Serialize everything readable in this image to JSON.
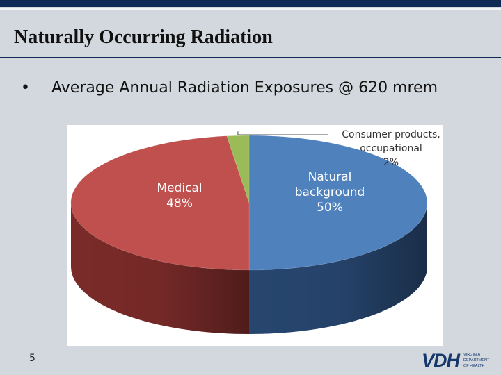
{
  "slide": {
    "title": "Naturally Occurring Radiation",
    "bullet": "Average Annual Radiation Exposures @ 620 mrem",
    "bullet_marker": "•",
    "page_number": "5"
  },
  "logo": {
    "main": "VDH",
    "sub_lines": [
      "VIRGINIA",
      "DEPARTMENT",
      "OF HEALTH"
    ]
  },
  "chart_data": {
    "type": "pie",
    "title": "",
    "slices": [
      {
        "label_lines": [
          "Natural",
          "background",
          "50%"
        ],
        "value": 50,
        "color": "#4f81bd",
        "side_color": "#27466f"
      },
      {
        "label_lines": [
          "Medical",
          "48%"
        ],
        "value": 48,
        "color": "#c0504d",
        "side_color": "#7a2b29"
      },
      {
        "label_lines": [
          "Consumer products,",
          "occupational",
          "2%"
        ],
        "value": 2,
        "color": "#9bbb59",
        "side_color": "#5d7530"
      }
    ],
    "legend": "none",
    "style": "3d"
  }
}
